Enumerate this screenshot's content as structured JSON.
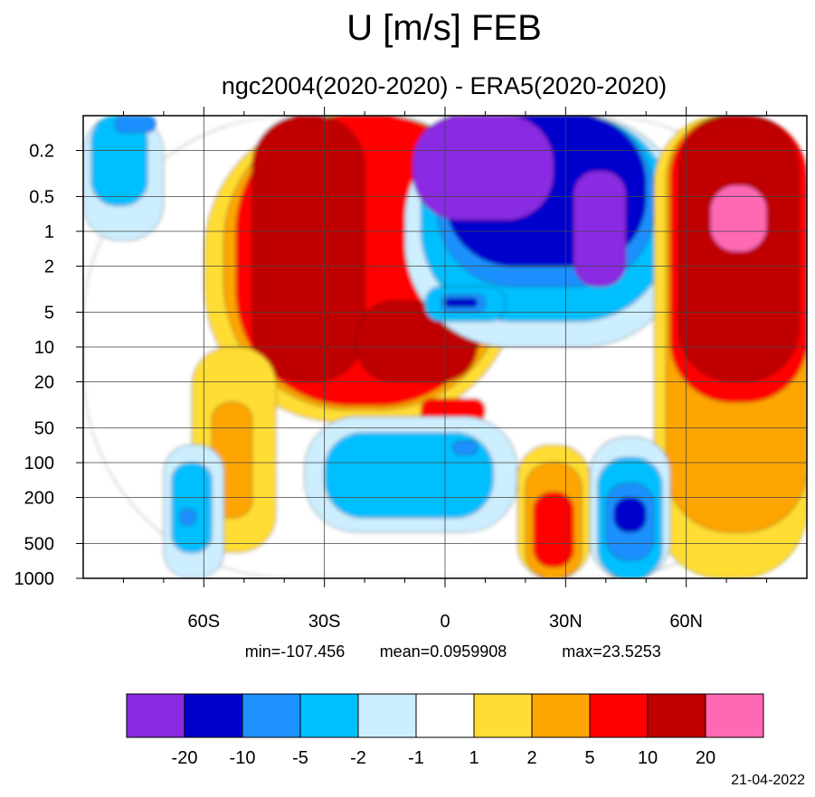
{
  "chart_data": {
    "type": "heatmap",
    "title": "U [m/s] FEB",
    "subtitle": "ngc2004(2020-2020) - ERA5(2020-2020)",
    "xlabel": "",
    "ylabel": "",
    "x_axis": {
      "range": [
        -90,
        90
      ],
      "ticks": [
        -60,
        -30,
        0,
        30,
        60
      ],
      "tick_labels": [
        "60S",
        "30S",
        "0",
        "30N",
        "60N"
      ],
      "minor_ticks": [
        -80,
        -70,
        -50,
        -40,
        -20,
        -10,
        10,
        20,
        40,
        50,
        70,
        80
      ]
    },
    "y_axis": {
      "scale": "log",
      "inverted": true,
      "range": [
        0.1,
        1000
      ],
      "ticks": [
        0.2,
        0.5,
        1,
        2,
        5,
        10,
        20,
        50,
        100,
        200,
        500,
        1000
      ],
      "tick_labels": [
        "0.2",
        "0.5",
        "1",
        "2",
        "5",
        "10",
        "20",
        "50",
        "100",
        "200",
        "500",
        "1000"
      ]
    },
    "grid": true,
    "stats": {
      "min_label": "min=-107.456",
      "mean_label": "mean=0.0959908",
      "max_label": "max=23.5253"
    },
    "colorbar": {
      "placement": "bottom",
      "colors": [
        "#8a2be2",
        "#0000cd",
        "#1e90ff",
        "#00bfff",
        "#cceeff",
        "#ffffff",
        "#ffdd33",
        "#ffa500",
        "#ff0000",
        "#c00000",
        "#ff69b4"
      ],
      "boundary_labels": [
        "-20",
        "-10",
        "-5",
        "-2",
        "-1",
        "1",
        "2",
        "5",
        "10",
        "20"
      ]
    },
    "regions": [
      {
        "level": 5,
        "lat": [
          -90,
          90
        ],
        "p": [
          0.1,
          1000
        ]
      },
      {
        "level": 4,
        "lat": [
          -90,
          -70
        ],
        "p": [
          0.1,
          1.2
        ]
      },
      {
        "level": 3,
        "lat": [
          -88,
          -74
        ],
        "p": [
          0.1,
          0.6
        ]
      },
      {
        "level": 2,
        "lat": [
          -82,
          -72
        ],
        "p": [
          0.1,
          0.14
        ]
      },
      {
        "level": 6,
        "lat": [
          -60,
          18
        ],
        "p": [
          0.1,
          45
        ]
      },
      {
        "level": 7,
        "lat": [
          -55,
          15
        ],
        "p": [
          0.1,
          35
        ]
      },
      {
        "level": 8,
        "lat": [
          -52,
          12
        ],
        "p": [
          0.1,
          32
        ]
      },
      {
        "level": 9,
        "lat": [
          -48,
          -20
        ],
        "p": [
          0.1,
          20
        ]
      },
      {
        "level": 9,
        "lat": [
          -22,
          8
        ],
        "p": [
          4,
          20
        ]
      },
      {
        "level": 6,
        "lat": [
          -63,
          -42
        ],
        "p": [
          10,
          600
        ]
      },
      {
        "level": 7,
        "lat": [
          -58,
          -48
        ],
        "p": [
          30,
          300
        ]
      },
      {
        "level": 4,
        "lat": [
          -10,
          60
        ],
        "p": [
          0.1,
          10
        ]
      },
      {
        "level": 3,
        "lat": [
          -6,
          56
        ],
        "p": [
          0.1,
          6
        ]
      },
      {
        "level": 2,
        "lat": [
          -2,
          52
        ],
        "p": [
          0.1,
          3
        ]
      },
      {
        "level": 1,
        "lat": [
          0,
          50
        ],
        "p": [
          0.1,
          2
        ]
      },
      {
        "level": 0,
        "lat": [
          -8,
          27
        ],
        "p": [
          0.1,
          0.8
        ]
      },
      {
        "level": 0,
        "lat": [
          32,
          45
        ],
        "p": [
          0.3,
          3
        ]
      },
      {
        "level": 3,
        "lat": [
          -5,
          15
        ],
        "p": [
          3,
          6
        ]
      },
      {
        "level": 2,
        "lat": [
          -1,
          10
        ],
        "p": [
          3.5,
          5
        ]
      },
      {
        "level": 1,
        "lat": [
          0,
          8
        ],
        "p": [
          3.8,
          4.5
        ]
      },
      {
        "level": 8,
        "lat": [
          -6,
          10
        ],
        "p": [
          28,
          45
        ]
      },
      {
        "level": 6,
        "lat": [
          52,
          90
        ],
        "p": [
          0.1,
          1000
        ]
      },
      {
        "level": 7,
        "lat": [
          55,
          90
        ],
        "p": [
          0.1,
          400
        ]
      },
      {
        "level": 8,
        "lat": [
          56,
          90
        ],
        "p": [
          0.1,
          30
        ]
      },
      {
        "level": 9,
        "lat": [
          58,
          88
        ],
        "p": [
          0.1,
          20
        ]
      },
      {
        "level": 10,
        "lat": [
          66,
          80
        ],
        "p": [
          0.4,
          1.5
        ]
      },
      {
        "level": 4,
        "lat": [
          -70,
          -55
        ],
        "p": [
          70,
          1000
        ]
      },
      {
        "level": 3,
        "lat": [
          -68,
          -58
        ],
        "p": [
          100,
          600
        ]
      },
      {
        "level": 2,
        "lat": [
          -66,
          -62
        ],
        "p": [
          250,
          350
        ]
      },
      {
        "level": 4,
        "lat": [
          -35,
          18
        ],
        "p": [
          40,
          400
        ]
      },
      {
        "level": 3,
        "lat": [
          -30,
          12
        ],
        "p": [
          55,
          300
        ]
      },
      {
        "level": 2,
        "lat": [
          2,
          8
        ],
        "p": [
          65,
          85
        ]
      },
      {
        "level": 6,
        "lat": [
          18,
          36
        ],
        "p": [
          70,
          1000
        ]
      },
      {
        "level": 7,
        "lat": [
          20,
          34
        ],
        "p": [
          100,
          1000
        ]
      },
      {
        "level": 8,
        "lat": [
          22,
          32
        ],
        "p": [
          180,
          800
        ]
      },
      {
        "level": 4,
        "lat": [
          36,
          56
        ],
        "p": [
          60,
          1000
        ]
      },
      {
        "level": 3,
        "lat": [
          38,
          54
        ],
        "p": [
          90,
          1000
        ]
      },
      {
        "level": 2,
        "lat": [
          40,
          52
        ],
        "p": [
          150,
          700
        ]
      },
      {
        "level": 1,
        "lat": [
          42,
          50
        ],
        "p": [
          200,
          400
        ]
      }
    ]
  },
  "footer": {
    "date": "21-04-2022"
  }
}
